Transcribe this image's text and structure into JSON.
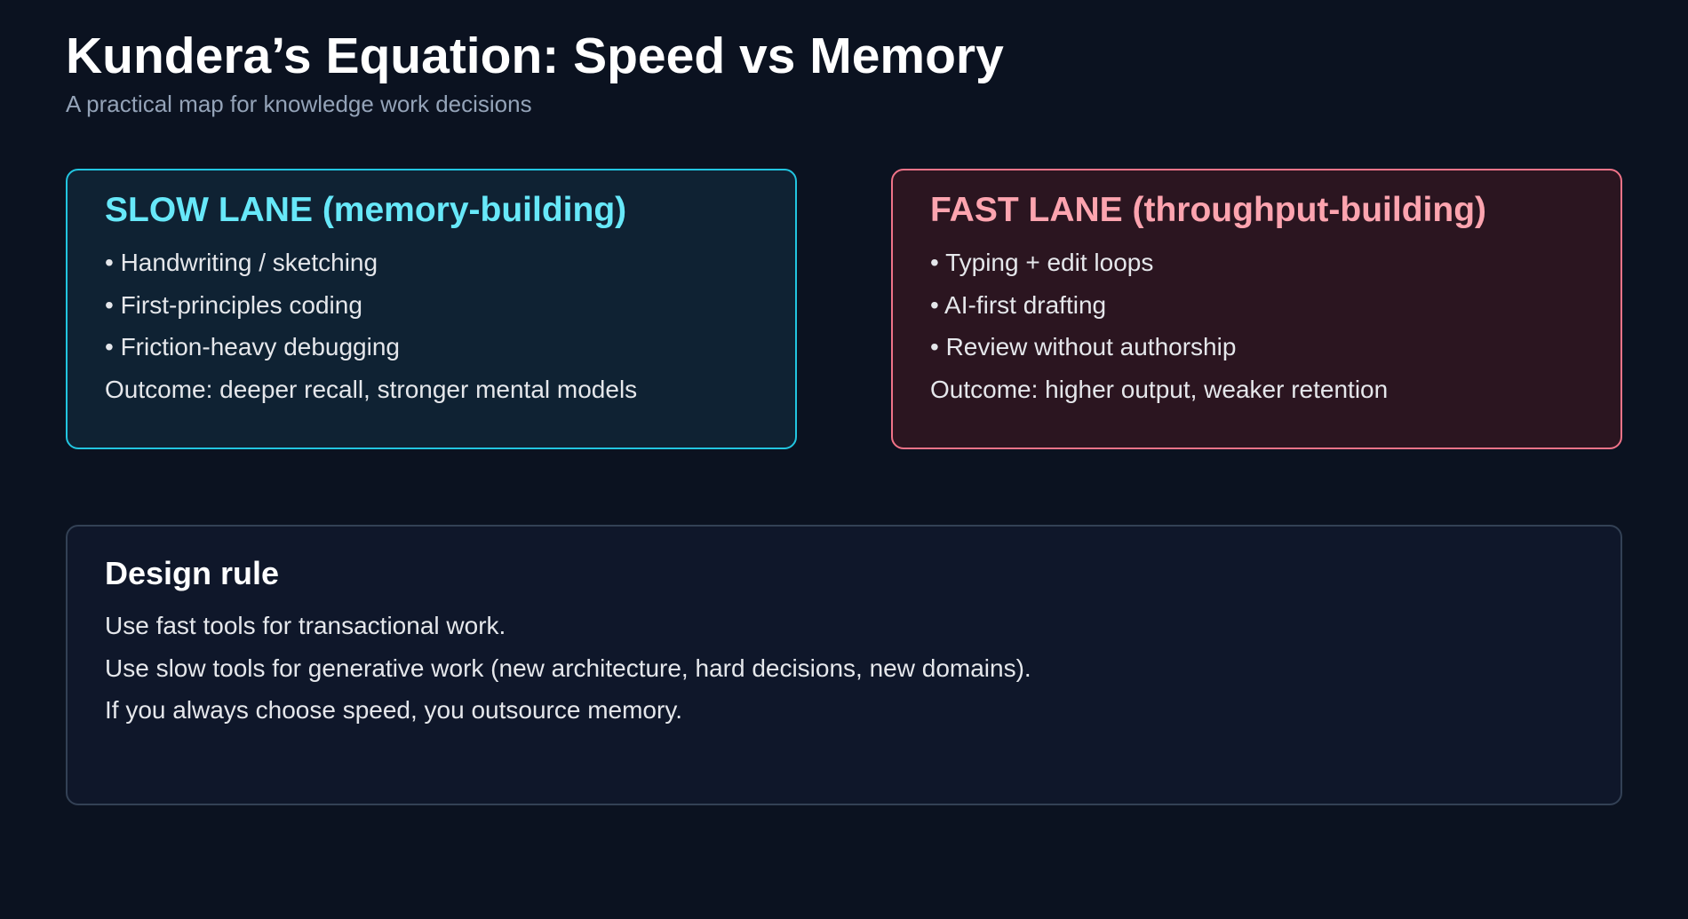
{
  "header": {
    "title": "Kundera’s Equation: Speed vs Memory",
    "subtitle": "A practical map for knowledge work decisions"
  },
  "slow_lane": {
    "heading": "SLOW LANE (memory-building)",
    "items": [
      "• Handwriting / sketching",
      "• First-principles coding",
      "• Friction-heavy debugging"
    ],
    "outcome": "Outcome: deeper recall, stronger mental models",
    "accent": "#22d3ee"
  },
  "fast_lane": {
    "heading": "FAST LANE (throughput-building)",
    "items": [
      "• Typing + edit loops",
      "• AI-first drafting",
      "• Review without authorship"
    ],
    "outcome": "Outcome: higher output, weaker retention",
    "accent": "#fb7185"
  },
  "design_rule": {
    "heading": "Design rule",
    "lines": [
      "Use fast tools for transactional work.",
      "Use slow tools for generative work (new architecture, hard decisions, new domains).",
      "If you always choose speed, you outsource memory."
    ]
  }
}
